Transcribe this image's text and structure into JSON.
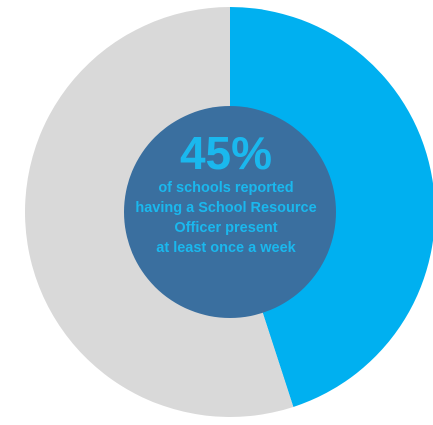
{
  "chart_data": {
    "type": "pie",
    "style": "donut",
    "slices": [
      {
        "label": "",
        "value": 45,
        "color": "#00b0f0"
      },
      {
        "label": "",
        "value": 55,
        "color": "#d9d9d9"
      }
    ],
    "start_angle_deg": 0,
    "direction": "clockwise",
    "center": {
      "value_label": "45%",
      "caption_lines": [
        "of schools reported",
        "having a School Resource",
        "Officer present",
        "at least once a week"
      ],
      "text_color": "#1ab8ee",
      "disc_color": "#3a6f9f"
    },
    "legend": "none",
    "grid": false
  }
}
